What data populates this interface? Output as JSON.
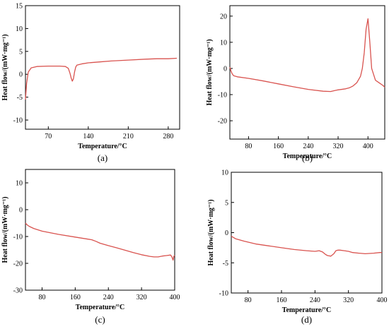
{
  "chart_data": [
    {
      "panel_label": "(a)",
      "type": "line",
      "xlabel": "Temperature/°C",
      "ylabel": "Heat flow/(mW·mg⁻¹)",
      "xlim": [
        30,
        300
      ],
      "ylim": [
        -12,
        15
      ],
      "xticks": [
        70,
        140,
        210,
        280
      ],
      "yticks": [
        -10,
        -5,
        0,
        5,
        10,
        15
      ],
      "color": "#d9534f",
      "series": [
        {
          "x": [
            30,
            32,
            35,
            40,
            50,
            70,
            90,
            100,
            105,
            108,
            110,
            112,
            114,
            116,
            118,
            120,
            130,
            140,
            160,
            180,
            210,
            240,
            260,
            280,
            295
          ],
          "y": [
            -5.5,
            -2.0,
            0.5,
            1.4,
            1.7,
            1.8,
            1.8,
            1.7,
            1.3,
            0.2,
            -0.8,
            -1.5,
            -1.0,
            0.5,
            1.6,
            2.0,
            2.3,
            2.5,
            2.7,
            2.9,
            3.1,
            3.3,
            3.4,
            3.4,
            3.5
          ]
        }
      ]
    },
    {
      "panel_label": "(b)",
      "type": "line",
      "xlabel": "Temperature/°C",
      "ylabel": "Heat flow/(mW·mg⁻¹)",
      "xlim": [
        30,
        445
      ],
      "ylim": [
        -27,
        24
      ],
      "xticks": [
        80,
        160,
        240,
        320,
        400
      ],
      "yticks": [
        -20,
        -10,
        0,
        10,
        20
      ],
      "color": "#d9534f",
      "series": [
        {
          "x": [
            30,
            33,
            36,
            40,
            50,
            80,
            120,
            160,
            200,
            240,
            280,
            300,
            310,
            320,
            340,
            350,
            360,
            370,
            380,
            385,
            390,
            395,
            400,
            405,
            410,
            420,
            430,
            440,
            445
          ],
          "y": [
            0.5,
            -1.0,
            -2.0,
            -2.8,
            -3.2,
            -3.8,
            -4.8,
            -5.9,
            -7.0,
            -8.0,
            -8.7,
            -8.8,
            -8.5,
            -8.2,
            -7.8,
            -7.4,
            -6.7,
            -5.5,
            -3.0,
            0.0,
            6.0,
            15.0,
            19.0,
            10.0,
            0.0,
            -4.5,
            -5.5,
            -6.5,
            -7.2
          ]
        }
      ]
    },
    {
      "panel_label": "(c)",
      "type": "line",
      "xlabel": "Temperature/°C",
      "ylabel": "Heat flow/(mW·mg⁻¹)",
      "xlim": [
        40,
        400
      ],
      "ylim": [
        -30,
        15
      ],
      "xticks": [
        80,
        160,
        240,
        320,
        400
      ],
      "yticks": [
        -30,
        -20,
        -10,
        0,
        10
      ],
      "color": "#d9534f",
      "series": [
        {
          "x": [
            40,
            45,
            50,
            60,
            80,
            120,
            160,
            200,
            210,
            220,
            240,
            260,
            280,
            300,
            320,
            340,
            350,
            360,
            370,
            380,
            390,
            393,
            396,
            398,
            400
          ],
          "y": [
            -5.0,
            -5.8,
            -6.3,
            -7.0,
            -8.0,
            -9.2,
            -10.2,
            -11.2,
            -11.8,
            -12.5,
            -13.4,
            -14.2,
            -15.1,
            -16.0,
            -16.8,
            -17.4,
            -17.6,
            -17.6,
            -17.3,
            -17.1,
            -16.9,
            -17.5,
            -18.8,
            -17.4,
            -17.0
          ]
        }
      ]
    },
    {
      "panel_label": "(d)",
      "type": "line",
      "xlabel": "Temperature/°C",
      "ylabel": "Heat flow/(mW·mg⁻¹)",
      "xlim": [
        40,
        400
      ],
      "ylim": [
        -10,
        10
      ],
      "xticks": [
        80,
        160,
        240,
        320,
        400
      ],
      "yticks": [
        -10,
        -5,
        0,
        5,
        10
      ],
      "color": "#d9534f",
      "series": [
        {
          "x": [
            40,
            45,
            50,
            70,
            100,
            130,
            160,
            190,
            220,
            240,
            250,
            258,
            265,
            270,
            278,
            285,
            290,
            295,
            300,
            310,
            320,
            330,
            345,
            360,
            380,
            395,
            400
          ],
          "y": [
            -0.6,
            -0.8,
            -1.0,
            -1.4,
            -1.9,
            -2.2,
            -2.5,
            -2.8,
            -3.0,
            -3.1,
            -3.0,
            -3.2,
            -3.6,
            -3.8,
            -3.9,
            -3.5,
            -3.0,
            -2.9,
            -2.9,
            -3.0,
            -3.1,
            -3.3,
            -3.4,
            -3.5,
            -3.4,
            -3.3,
            -3.3
          ]
        }
      ]
    }
  ]
}
